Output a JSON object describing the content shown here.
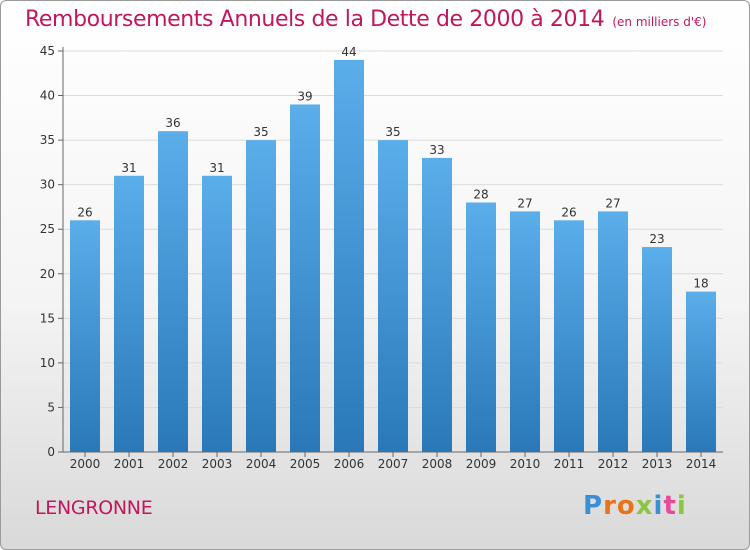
{
  "header": {
    "title": "Remboursements Annuels de la Dette de 2000 à 2014",
    "subtitle": "(en milliers d'€)"
  },
  "footer": {
    "location": "LENGRONNE",
    "logo": "Proxiti"
  },
  "colors": {
    "title": "#c0185f",
    "bar_top": "#5aaeea",
    "bar_bottom": "#2a78b8"
  },
  "chart_data": {
    "type": "bar",
    "title": "Remboursements Annuels de la Dette de 2000 à 2014",
    "subtitle": "(en milliers d'€)",
    "xlabel": "",
    "ylabel": "",
    "categories": [
      "2000",
      "2001",
      "2002",
      "2003",
      "2004",
      "2005",
      "2006",
      "2007",
      "2008",
      "2009",
      "2010",
      "2011",
      "2012",
      "2013",
      "2014"
    ],
    "values": [
      26,
      31,
      36,
      31,
      35,
      39,
      44,
      35,
      33,
      28,
      27,
      26,
      27,
      23,
      18
    ],
    "ylim": [
      0,
      45
    ],
    "yticks": [
      0,
      5,
      10,
      15,
      20,
      25,
      30,
      35,
      40,
      45
    ],
    "grid": true,
    "legend": "none"
  }
}
